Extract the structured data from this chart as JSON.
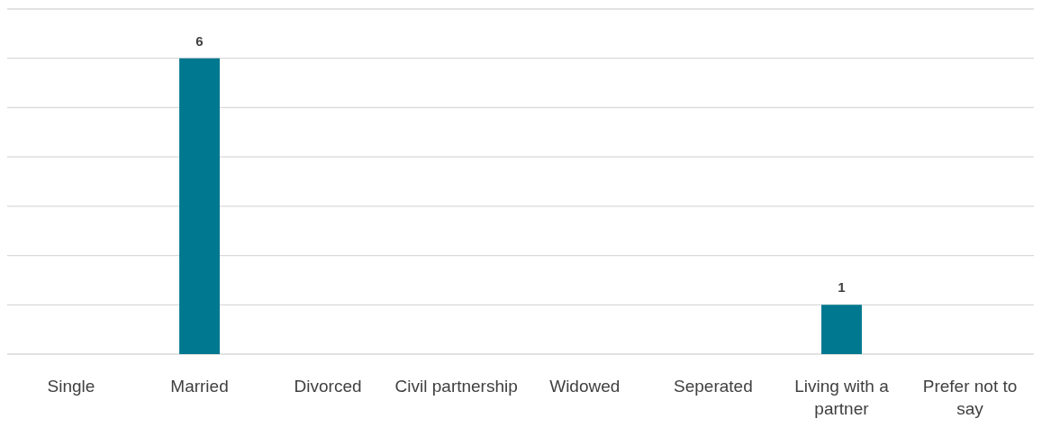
{
  "chart_data": {
    "type": "bar",
    "categories": [
      "Single",
      "Married",
      "Divorced",
      "Civil partnership",
      "Widowed",
      "Seperated",
      "Living with a partner",
      "Prefer not to say"
    ],
    "values": [
      0,
      6,
      0,
      0,
      0,
      0,
      1,
      0
    ],
    "value_labels": [
      null,
      "6",
      null,
      null,
      null,
      null,
      "1",
      null
    ],
    "color": "#00788f",
    "ylim": [
      0,
      7
    ],
    "yticks": [
      {
        "value": 0,
        "label": null
      },
      {
        "value": 1,
        "label": null
      },
      {
        "value": 2,
        "label": null
      },
      {
        "value": 3,
        "label": null
      },
      {
        "value": 4,
        "label": null
      },
      {
        "value": 5,
        "label": null
      },
      {
        "value": 6,
        "label": null
      },
      {
        "value": 7,
        "label": null
      }
    ],
    "grid": "y",
    "tick_labels": "x"
  }
}
